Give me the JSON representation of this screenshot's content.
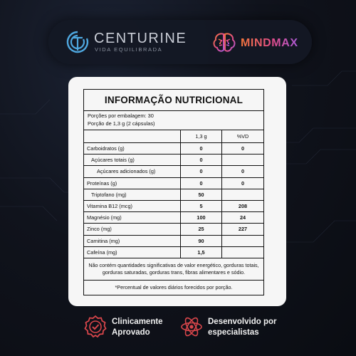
{
  "brands": {
    "centurine": {
      "name": "CENTURINE",
      "tagline": "VIDA EQUILIBRADA",
      "icon": "centurine-logo-icon"
    },
    "mindmax": {
      "name": "MINDMAX",
      "icon": "brain-icon",
      "gradient": [
        "#f2753a",
        "#e24d8a",
        "#a85ad6"
      ]
    }
  },
  "nutrition": {
    "title": "INFORMAÇÃO NUTRICIONAL",
    "portions_per_package": "Porções por embalagem: 30",
    "portion_size": "Porção de 1,3 g (2 cápsulas)",
    "headers": [
      "",
      "1,3 g",
      "%VD"
    ],
    "rows": [
      {
        "label": "Carboidratos (g)",
        "amount": "0",
        "dv": "0"
      },
      {
        "label": "Açúcares totais (g)",
        "amount": "0",
        "dv": ""
      },
      {
        "label": "Açúcares adicionados (g)",
        "amount": "0",
        "dv": "0"
      },
      {
        "label": "Proteínas (g)",
        "amount": "0",
        "dv": "0"
      },
      {
        "label": "Triptofano (mg)",
        "amount": "50",
        "dv": ""
      },
      {
        "label": "Vitamina B12 (mcg)",
        "amount": "5",
        "dv": "208"
      },
      {
        "label": "Magnésio (mg)",
        "amount": "100",
        "dv": "24"
      },
      {
        "label": "Zinco (mg)",
        "amount": "25",
        "dv": "227"
      },
      {
        "label": "Carnitina (mg)",
        "amount": "90",
        "dv": ""
      },
      {
        "label": "Cafeína (mg)",
        "amount": "1,5",
        "dv": ""
      }
    ],
    "note": "Não contém quantidades significativas de valor energético, gorduras totais, gorduras saturadas, gorduras trans, fibras alimentares e sódio.",
    "footnote": "*Percentual de valores diários forecidos por porção."
  },
  "badges": [
    {
      "icon": "certified-badge-icon",
      "line1": "Clinicamente",
      "line2": "Aprovado",
      "color": "#d9464b"
    },
    {
      "icon": "atom-icon",
      "line1": "Desenvolvido por",
      "line2": "especialistas",
      "color": "#d9464b"
    }
  ]
}
